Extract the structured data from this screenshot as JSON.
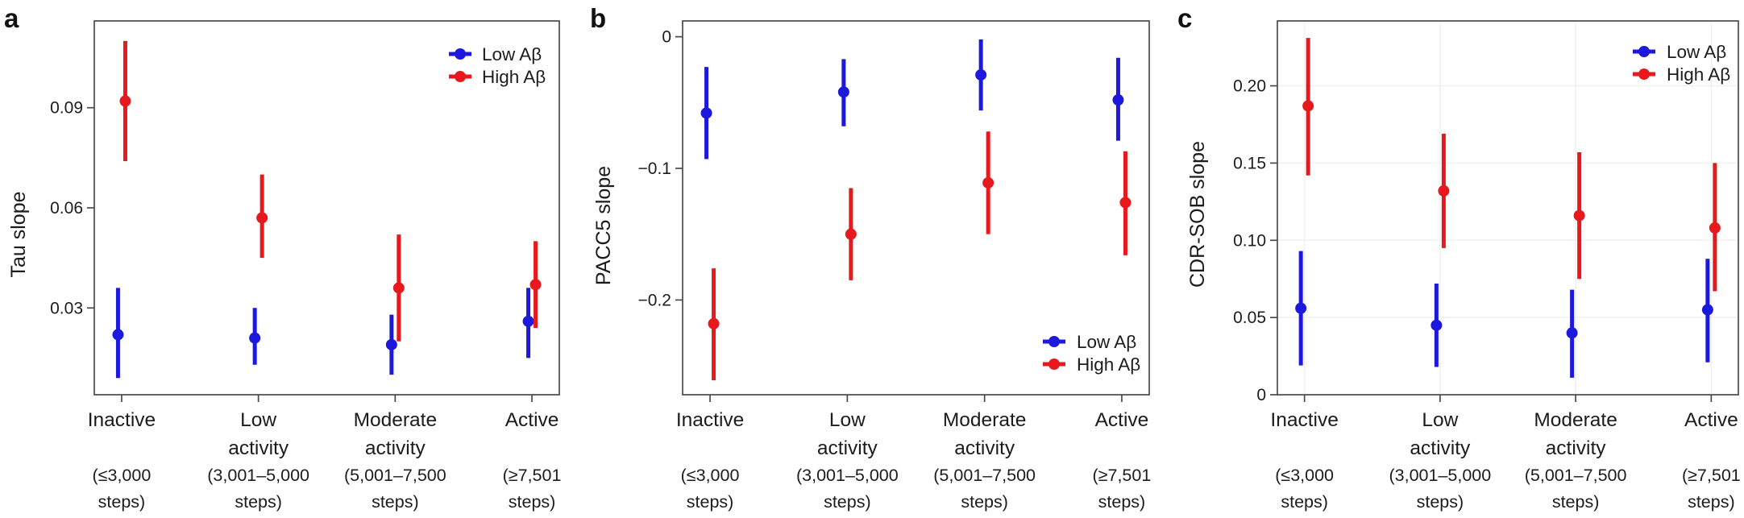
{
  "figure": {
    "background": "#ffffff",
    "axis_color": "#4a4a4a",
    "text_color": "#1c1c1c",
    "grid_color": "#f2f1ee"
  },
  "legend": {
    "entries": [
      {
        "label": "Low Aβ",
        "color": "#1d19dc"
      },
      {
        "label": "High Aβ",
        "color": "#e7191c"
      }
    ]
  },
  "categories": [
    {
      "name": "Inactive",
      "name_lines": [
        "Inactive"
      ],
      "steps": "(≤3,000 steps)",
      "steps_lines": [
        "(≤3,000",
        "steps)"
      ]
    },
    {
      "name": "Low activity",
      "name_lines": [
        "Low",
        "activity"
      ],
      "steps": "(3,001–5,000 steps)",
      "steps_lines": [
        "(3,001–5,000",
        "steps)"
      ]
    },
    {
      "name": "Moderate activity",
      "name_lines": [
        "Moderate",
        "activity"
      ],
      "steps": "(5,001–7,500 steps)",
      "steps_lines": [
        "(5,001–7,500",
        "steps)"
      ]
    },
    {
      "name": "Active",
      "name_lines": [
        "Active"
      ],
      "steps": "(≥7,501 steps)",
      "steps_lines": [
        "(≥7,501",
        "steps)"
      ]
    }
  ],
  "chart_data": [
    {
      "panel_label": "a",
      "type": "pointrange",
      "ylabel": "Tau slope",
      "ylim": [
        0.004,
        0.116
      ],
      "yticks": [
        {
          "value": 0.03,
          "label": "0.03"
        },
        {
          "value": 0.06,
          "label": "0.06"
        },
        {
          "value": 0.09,
          "label": "0.09"
        }
      ],
      "grid": false,
      "legend_position": "top-right",
      "series": [
        {
          "name": "Low Aβ",
          "color": "#1d19dc",
          "values": [
            {
              "estimate": 0.022,
              "ci_low": 0.009,
              "ci_high": 0.036
            },
            {
              "estimate": 0.021,
              "ci_low": 0.013,
              "ci_high": 0.03
            },
            {
              "estimate": 0.019,
              "ci_low": 0.01,
              "ci_high": 0.028
            },
            {
              "estimate": 0.026,
              "ci_low": 0.015,
              "ci_high": 0.036
            }
          ]
        },
        {
          "name": "High Aβ",
          "color": "#e7191c",
          "values": [
            {
              "estimate": 0.092,
              "ci_low": 0.074,
              "ci_high": 0.11
            },
            {
              "estimate": 0.057,
              "ci_low": 0.045,
              "ci_high": 0.07
            },
            {
              "estimate": 0.036,
              "ci_low": 0.02,
              "ci_high": 0.052
            },
            {
              "estimate": 0.037,
              "ci_low": 0.024,
              "ci_high": 0.05
            }
          ]
        }
      ]
    },
    {
      "panel_label": "b",
      "type": "pointrange",
      "ylabel": "PACC5 slope",
      "ylim": [
        -0.272,
        0.012
      ],
      "yticks": [
        {
          "value": 0,
          "label": "0"
        },
        {
          "value": -0.1,
          "label": "−0.1"
        },
        {
          "value": -0.2,
          "label": "−0.2"
        }
      ],
      "grid": false,
      "legend_position": "bottom-right",
      "series": [
        {
          "name": "Low Aβ",
          "color": "#1d19dc",
          "values": [
            {
              "estimate": -0.058,
              "ci_low": -0.093,
              "ci_high": -0.023
            },
            {
              "estimate": -0.042,
              "ci_low": -0.068,
              "ci_high": -0.017
            },
            {
              "estimate": -0.029,
              "ci_low": -0.056,
              "ci_high": -0.002
            },
            {
              "estimate": -0.048,
              "ci_low": -0.079,
              "ci_high": -0.016
            }
          ]
        },
        {
          "name": "High Aβ",
          "color": "#e7191c",
          "values": [
            {
              "estimate": -0.218,
              "ci_low": -0.261,
              "ci_high": -0.176
            },
            {
              "estimate": -0.15,
              "ci_low": -0.185,
              "ci_high": -0.115
            },
            {
              "estimate": -0.111,
              "ci_low": -0.15,
              "ci_high": -0.072
            },
            {
              "estimate": -0.126,
              "ci_low": -0.166,
              "ci_high": -0.087
            }
          ]
        }
      ]
    },
    {
      "panel_label": "c",
      "type": "pointrange",
      "ylabel": "CDR-SOB slope",
      "ylim": [
        0,
        0.242
      ],
      "yticks": [
        {
          "value": 0,
          "label": "0"
        },
        {
          "value": 0.05,
          "label": "0.05"
        },
        {
          "value": 0.1,
          "label": "0.10"
        },
        {
          "value": 0.15,
          "label": "0.15"
        },
        {
          "value": 0.2,
          "label": "0.20"
        }
      ],
      "grid": true,
      "legend_position": "top-right",
      "series": [
        {
          "name": "Low Aβ",
          "color": "#1d19dc",
          "values": [
            {
              "estimate": 0.056,
              "ci_low": 0.019,
              "ci_high": 0.093
            },
            {
              "estimate": 0.045,
              "ci_low": 0.018,
              "ci_high": 0.072
            },
            {
              "estimate": 0.04,
              "ci_low": 0.011,
              "ci_high": 0.068
            },
            {
              "estimate": 0.055,
              "ci_low": 0.021,
              "ci_high": 0.088
            }
          ]
        },
        {
          "name": "High Aβ",
          "color": "#e7191c",
          "values": [
            {
              "estimate": 0.187,
              "ci_low": 0.142,
              "ci_high": 0.231
            },
            {
              "estimate": 0.132,
              "ci_low": 0.095,
              "ci_high": 0.169
            },
            {
              "estimate": 0.116,
              "ci_low": 0.075,
              "ci_high": 0.157
            },
            {
              "estimate": 0.108,
              "ci_low": 0.067,
              "ci_high": 0.15
            }
          ]
        }
      ]
    }
  ]
}
